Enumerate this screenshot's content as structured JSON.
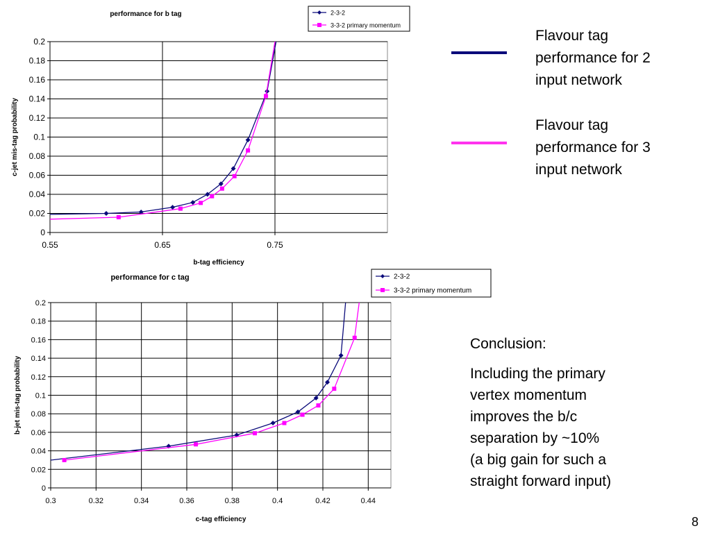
{
  "chart_data": [
    {
      "type": "line",
      "title": "performance for b tag",
      "xlabel": "b-tag efficiency",
      "ylabel": "c-jet mis-tag probability",
      "xlim": [
        0.55,
        0.85
      ],
      "ylim": [
        0,
        0.2
      ],
      "x_ticks": [
        "0.55",
        "0.65",
        "0.75"
      ],
      "y_ticks": [
        "0",
        "0.02",
        "0.04",
        "0.06",
        "0.08",
        "0.1",
        "0.12",
        "0.14",
        "0.16",
        "0.18",
        "0.2"
      ],
      "grid": true,
      "legend_position": "top-right",
      "series": [
        {
          "name": "2-3-2",
          "color": "#0a0a7a",
          "marker": "diamond",
          "x": [
            0.55,
            0.6,
            0.631,
            0.659,
            0.677,
            0.69,
            0.702,
            0.713,
            0.726,
            0.743,
            0.751
          ],
          "y": [
            0.019,
            0.02,
            0.0215,
            0.0265,
            0.0315,
            0.04,
            0.051,
            0.067,
            0.097,
            0.148,
            0.2
          ]
        },
        {
          "name": "3-3-2 primary momentum",
          "color": "#ff00ff",
          "marker": "square",
          "x": [
            0.55,
            0.611,
            0.666,
            0.684,
            0.694,
            0.703,
            0.714,
            0.726,
            0.742,
            0.75
          ],
          "y": [
            0.014,
            0.016,
            0.025,
            0.031,
            0.038,
            0.046,
            0.059,
            0.086,
            0.143,
            0.2
          ]
        }
      ]
    },
    {
      "type": "line",
      "title": "performance for c tag",
      "xlabel": "c-tag efficiency",
      "ylabel": "b-jet mis-tag probability",
      "xlim": [
        0.3,
        0.45
      ],
      "ylim": [
        0,
        0.2
      ],
      "x_ticks": [
        "0.3",
        "0.32",
        "0.34",
        "0.36",
        "0.38",
        "0.4",
        "0.42",
        "0.44"
      ],
      "y_ticks": [
        "0",
        "0.02",
        "0.04",
        "0.06",
        "0.08",
        "0.1",
        "0.12",
        "0.14",
        "0.16",
        "0.18",
        "0.2"
      ],
      "grid": true,
      "legend_position": "top-right",
      "series": [
        {
          "name": "2-3-2",
          "color": "#0a0a7a",
          "marker": "diamond",
          "x": [
            0.3,
            0.352,
            0.382,
            0.398,
            0.409,
            0.417,
            0.422,
            0.428,
            0.43
          ],
          "y": [
            0.03,
            0.045,
            0.057,
            0.07,
            0.082,
            0.097,
            0.114,
            0.143,
            0.2
          ]
        },
        {
          "name": "3-3-2 primary momentum",
          "color": "#ff00ff",
          "marker": "square",
          "x": [
            0.306,
            0.364,
            0.39,
            0.403,
            0.411,
            0.418,
            0.425,
            0.434,
            0.436
          ],
          "y": [
            0.03,
            0.047,
            0.059,
            0.07,
            0.079,
            0.089,
            0.107,
            0.162,
            0.2
          ]
        }
      ]
    }
  ],
  "side_legend": [
    {
      "color": "#0a0a7a",
      "lines": [
        "Flavour tag",
        "performance for 2",
        "input network"
      ]
    },
    {
      "color": "#ff33ee",
      "lines": [
        "Flavour tag",
        "performance for 3",
        "input network"
      ]
    }
  ],
  "conclusion": {
    "heading": "Conclusion:",
    "lines": [
      "Including the primary",
      "vertex momentum",
      "improves the b/c",
      "separation by ~10%",
      "(a big gain for such a",
      "straight forward input)"
    ]
  },
  "slide_number": "8"
}
